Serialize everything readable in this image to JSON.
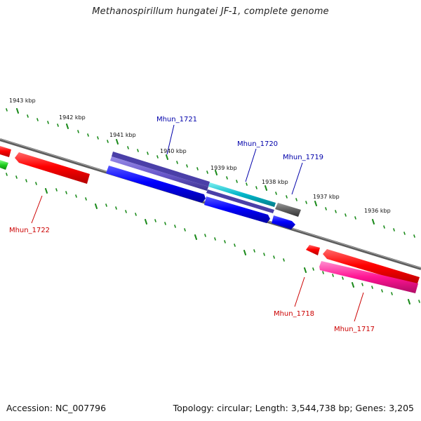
{
  "title": "Methanospirillum hungatei JF-1, complete genome",
  "footer": {
    "accession": "Accession: NC_007796",
    "summary": "Topology: circular; Length: 3,544,738 bp; Genes: 3,205"
  },
  "kbp_labels": [
    "1943 kbp",
    "1942 kbp",
    "1941 kbp",
    "1940 kbp",
    "1939 kbp",
    "1938 kbp",
    "1937 kbp",
    "1936 kbp"
  ],
  "genes": {
    "mhun_1721": {
      "label": "Mhun_1721",
      "color": "#0000aa"
    },
    "mhun_1720": {
      "label": "Mhun_1720",
      "color": "#0000aa"
    },
    "mhun_1719": {
      "label": "Mhun_1719",
      "color": "#0000aa"
    },
    "mhun_1722": {
      "label": "Mhun_1722",
      "color": "#cc0000"
    },
    "mhun_1718": {
      "label": "Mhun_1718",
      "color": "#cc0000"
    },
    "mhun_1717": {
      "label": "Mhun_1717",
      "color": "#cc0000"
    }
  }
}
